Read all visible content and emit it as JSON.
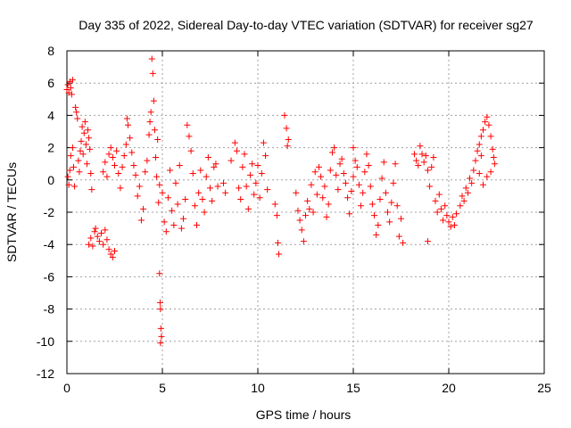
{
  "chart_data": {
    "type": "scatter",
    "title": "Day 335 of 2022, Sidereal Day-to-day VTEC variation (SDTVAR) for receiver sg27",
    "xlabel": "GPS time / hours",
    "ylabel": "SDTVAR / TECUs",
    "xlim": [
      0,
      25
    ],
    "ylim": [
      -12,
      8
    ],
    "x_ticks": [
      "0",
      "5",
      "10",
      "15",
      "20",
      "25"
    ],
    "y_ticks": [
      "-12",
      "-10",
      "-8",
      "-6",
      "-4",
      "-2",
      "0",
      "2",
      "4",
      "6",
      "8"
    ],
    "x_tick_values": [
      0,
      5,
      10,
      15,
      20,
      25
    ],
    "y_tick_values": [
      -12,
      -10,
      -8,
      -6,
      -4,
      -2,
      0,
      2,
      4,
      6,
      8
    ],
    "grid": true,
    "marker": "+",
    "series": [
      {
        "name": "SDTVAR",
        "color": "#ff0000",
        "points": [
          [
            0.0,
            5.6
          ],
          [
            0.05,
            5.9
          ],
          [
            0.1,
            5.4
          ],
          [
            0.15,
            6.1
          ],
          [
            0.2,
            5.7
          ],
          [
            0.25,
            5.3
          ],
          [
            0.3,
            6.2
          ],
          [
            0.05,
            0.2
          ],
          [
            0.1,
            -0.3
          ],
          [
            0.15,
            0.6
          ],
          [
            0.2,
            1.5
          ],
          [
            0.3,
            2.0
          ],
          [
            0.35,
            0.8
          ],
          [
            0.4,
            -0.4
          ],
          [
            0.45,
            4.5
          ],
          [
            0.5,
            4.2
          ],
          [
            0.55,
            3.8
          ],
          [
            0.6,
            1.2
          ],
          [
            0.65,
            0.5
          ],
          [
            0.7,
            1.8
          ],
          [
            0.75,
            2.4
          ],
          [
            0.8,
            3.3
          ],
          [
            0.85,
            1.6
          ],
          [
            0.9,
            2.9
          ],
          [
            0.95,
            3.6
          ],
          [
            1.0,
            2.2
          ],
          [
            1.05,
            1.0
          ],
          [
            1.1,
            3.1
          ],
          [
            1.15,
            2.6
          ],
          [
            1.2,
            1.9
          ],
          [
            1.25,
            0.4
          ],
          [
            1.3,
            -0.6
          ],
          [
            1.15,
            -4.0
          ],
          [
            1.25,
            -3.6
          ],
          [
            1.35,
            -4.1
          ],
          [
            1.45,
            -3.2
          ],
          [
            1.5,
            -3.0
          ],
          [
            1.6,
            -3.5
          ],
          [
            1.7,
            -3.8
          ],
          [
            1.8,
            -3.3
          ],
          [
            1.9,
            -4.0
          ],
          [
            2.0,
            -3.1
          ],
          [
            2.1,
            -3.7
          ],
          [
            2.2,
            -4.3
          ],
          [
            2.3,
            -4.6
          ],
          [
            2.4,
            -4.8
          ],
          [
            2.5,
            -4.4
          ],
          [
            1.9,
            0.5
          ],
          [
            2.0,
            1.1
          ],
          [
            2.1,
            0.2
          ],
          [
            2.2,
            1.6
          ],
          [
            2.3,
            2.0
          ],
          [
            2.4,
            1.4
          ],
          [
            2.5,
            0.9
          ],
          [
            2.6,
            1.8
          ],
          [
            2.7,
            0.4
          ],
          [
            2.8,
            -0.5
          ],
          [
            2.9,
            0.8
          ],
          [
            3.0,
            1.5
          ],
          [
            3.1,
            2.2
          ],
          [
            3.15,
            3.8
          ],
          [
            3.2,
            3.4
          ],
          [
            3.3,
            2.6
          ],
          [
            3.4,
            1.7
          ],
          [
            3.5,
            0.9
          ],
          [
            3.6,
            0.3
          ],
          [
            3.7,
            -1.0
          ],
          [
            3.8,
            -0.4
          ],
          [
            3.9,
            -2.5
          ],
          [
            4.0,
            -1.8
          ],
          [
            4.1,
            0.5
          ],
          [
            4.2,
            1.2
          ],
          [
            4.3,
            2.8
          ],
          [
            4.35,
            3.6
          ],
          [
            4.4,
            4.2
          ],
          [
            4.45,
            7.5
          ],
          [
            4.5,
            6.6
          ],
          [
            4.55,
            4.9
          ],
          [
            4.6,
            3.1
          ],
          [
            4.65,
            1.4
          ],
          [
            4.7,
            0.2
          ],
          [
            4.75,
            2.5
          ],
          [
            4.8,
            -1.4
          ],
          [
            4.85,
            -0.3
          ],
          [
            4.85,
            -5.8
          ],
          [
            4.88,
            -7.6
          ],
          [
            4.9,
            -8.0
          ],
          [
            4.92,
            -9.2
          ],
          [
            4.95,
            -9.7
          ],
          [
            4.9,
            -10.1
          ],
          [
            5.0,
            -0.8
          ],
          [
            5.1,
            -2.6
          ],
          [
            5.2,
            -3.2
          ],
          [
            5.3,
            -1.1
          ],
          [
            5.4,
            0.6
          ],
          [
            5.5,
            -1.9
          ],
          [
            5.6,
            -2.8
          ],
          [
            5.7,
            -0.2
          ],
          [
            5.8,
            -1.5
          ],
          [
            5.9,
            0.9
          ],
          [
            6.0,
            -3.0
          ],
          [
            6.1,
            -2.4
          ],
          [
            6.2,
            -1.2
          ],
          [
            6.3,
            3.4
          ],
          [
            6.4,
            2.7
          ],
          [
            6.5,
            1.8
          ],
          [
            6.6,
            0.4
          ],
          [
            6.7,
            -1.6
          ],
          [
            6.8,
            -2.8
          ],
          [
            6.9,
            -0.8
          ],
          [
            7.0,
            0.6
          ],
          [
            7.1,
            -1.2
          ],
          [
            7.2,
            -2.0
          ],
          [
            7.3,
            0.2
          ],
          [
            7.4,
            1.4
          ],
          [
            7.5,
            -0.5
          ],
          [
            7.6,
            -1.3
          ],
          [
            7.7,
            0.8
          ],
          [
            7.8,
            1.0
          ],
          [
            7.9,
            -0.4
          ],
          [
            8.2,
            -0.2
          ],
          [
            8.3,
            -0.8
          ],
          [
            8.6,
            1.2
          ],
          [
            8.8,
            2.3
          ],
          [
            8.9,
            1.8
          ],
          [
            9.0,
            -0.5
          ],
          [
            9.1,
            -1.2
          ],
          [
            9.2,
            0.8
          ],
          [
            9.3,
            1.6
          ],
          [
            9.4,
            -0.4
          ],
          [
            9.5,
            -1.8
          ],
          [
            9.6,
            0.3
          ],
          [
            9.7,
            1.0
          ],
          [
            9.8,
            -0.9
          ],
          [
            9.9,
            -0.2
          ],
          [
            10.0,
            0.9
          ],
          [
            10.1,
            -1.1
          ],
          [
            10.2,
            0.4
          ],
          [
            10.3,
            2.3
          ],
          [
            10.4,
            1.5
          ],
          [
            10.5,
            -0.6
          ],
          [
            10.9,
            -1.5
          ],
          [
            11.0,
            -2.2
          ],
          [
            11.05,
            -3.9
          ],
          [
            11.1,
            -4.6
          ],
          [
            11.4,
            4.0
          ],
          [
            11.5,
            3.2
          ],
          [
            11.55,
            2.1
          ],
          [
            11.6,
            2.5
          ],
          [
            12.0,
            -0.8
          ],
          [
            12.1,
            -1.9
          ],
          [
            12.2,
            -2.5
          ],
          [
            12.3,
            -3.1
          ],
          [
            12.4,
            -3.8
          ],
          [
            12.5,
            -2.2
          ],
          [
            12.6,
            -1.3
          ],
          [
            12.7,
            -1.8
          ],
          [
            12.8,
            -0.3
          ],
          [
            12.9,
            -2.0
          ],
          [
            13.0,
            0.5
          ],
          [
            13.1,
            -0.9
          ],
          [
            13.2,
            0.8
          ],
          [
            13.3,
            0.2
          ],
          [
            13.4,
            -1.1
          ],
          [
            13.5,
            -0.4
          ],
          [
            13.6,
            -2.3
          ],
          [
            13.7,
            -1.5
          ],
          [
            13.8,
            0.6
          ],
          [
            13.9,
            1.7
          ],
          [
            14.0,
            2.0
          ],
          [
            14.1,
            0.3
          ],
          [
            14.2,
            -0.6
          ],
          [
            14.3,
            1.0
          ],
          [
            14.4,
            1.3
          ],
          [
            14.5,
            0.4
          ],
          [
            14.6,
            -0.2
          ],
          [
            14.7,
            -1.1
          ],
          [
            14.8,
            -2.1
          ],
          [
            14.9,
            -0.7
          ],
          [
            15.0,
            0.2
          ],
          [
            15.0,
            2.0
          ],
          [
            15.1,
            1.2
          ],
          [
            15.2,
            0.8
          ],
          [
            15.3,
            -0.3
          ],
          [
            15.4,
            -1.6
          ],
          [
            15.5,
            -0.8
          ],
          [
            15.6,
            0.5
          ],
          [
            15.7,
            1.6
          ],
          [
            15.8,
            0.9
          ],
          [
            15.9,
            -0.4
          ],
          [
            16.0,
            -1.5
          ],
          [
            16.1,
            -2.2
          ],
          [
            16.2,
            -3.4
          ],
          [
            16.3,
            -2.8
          ],
          [
            16.4,
            -1.2
          ],
          [
            16.5,
            0.1
          ],
          [
            16.6,
            1.1
          ],
          [
            16.7,
            -0.8
          ],
          [
            16.8,
            -2.0
          ],
          [
            16.9,
            -2.6
          ],
          [
            17.0,
            -1.4
          ],
          [
            17.1,
            -0.2
          ],
          [
            17.2,
            1.0
          ],
          [
            17.3,
            -1.6
          ],
          [
            17.4,
            -3.5
          ],
          [
            17.5,
            -2.4
          ],
          [
            17.6,
            -3.9
          ],
          [
            18.2,
            1.6
          ],
          [
            18.3,
            1.2
          ],
          [
            18.4,
            0.9
          ],
          [
            18.5,
            2.1
          ],
          [
            18.6,
            1.6
          ],
          [
            18.7,
            1.1
          ],
          [
            18.8,
            1.5
          ],
          [
            18.9,
            0.6
          ],
          [
            19.0,
            -0.4
          ],
          [
            19.1,
            0.8
          ],
          [
            19.2,
            1.4
          ],
          [
            19.3,
            -1.3
          ],
          [
            19.4,
            -2.0
          ],
          [
            19.5,
            -0.9
          ],
          [
            19.6,
            -1.8
          ],
          [
            19.7,
            -2.5
          ],
          [
            19.8,
            -1.6
          ],
          [
            19.9,
            -2.2
          ],
          [
            20.0,
            -2.6
          ],
          [
            20.1,
            -2.9
          ],
          [
            20.2,
            -2.3
          ],
          [
            20.3,
            -2.8
          ],
          [
            20.4,
            -2.1
          ],
          [
            18.9,
            -3.8
          ],
          [
            20.6,
            -1.6
          ],
          [
            20.7,
            -1.0
          ],
          [
            20.8,
            -1.3
          ],
          [
            20.9,
            -0.5
          ],
          [
            21.0,
            -0.8
          ],
          [
            21.1,
            0.1
          ],
          [
            21.2,
            -0.2
          ],
          [
            21.3,
            0.6
          ],
          [
            21.4,
            1.2
          ],
          [
            21.5,
            1.8
          ],
          [
            21.6,
            2.2
          ],
          [
            21.7,
            2.7
          ],
          [
            21.8,
            3.1
          ],
          [
            21.9,
            3.6
          ],
          [
            22.0,
            3.9
          ],
          [
            22.1,
            3.4
          ],
          [
            22.2,
            2.7
          ],
          [
            22.3,
            1.9
          ],
          [
            22.35,
            1.4
          ],
          [
            22.4,
            1.0
          ],
          [
            22.2,
            0.5
          ],
          [
            22.0,
            0.2
          ],
          [
            21.8,
            -0.3
          ],
          [
            21.6,
            0.4
          ],
          [
            21.7,
            1.5
          ]
        ]
      }
    ]
  }
}
